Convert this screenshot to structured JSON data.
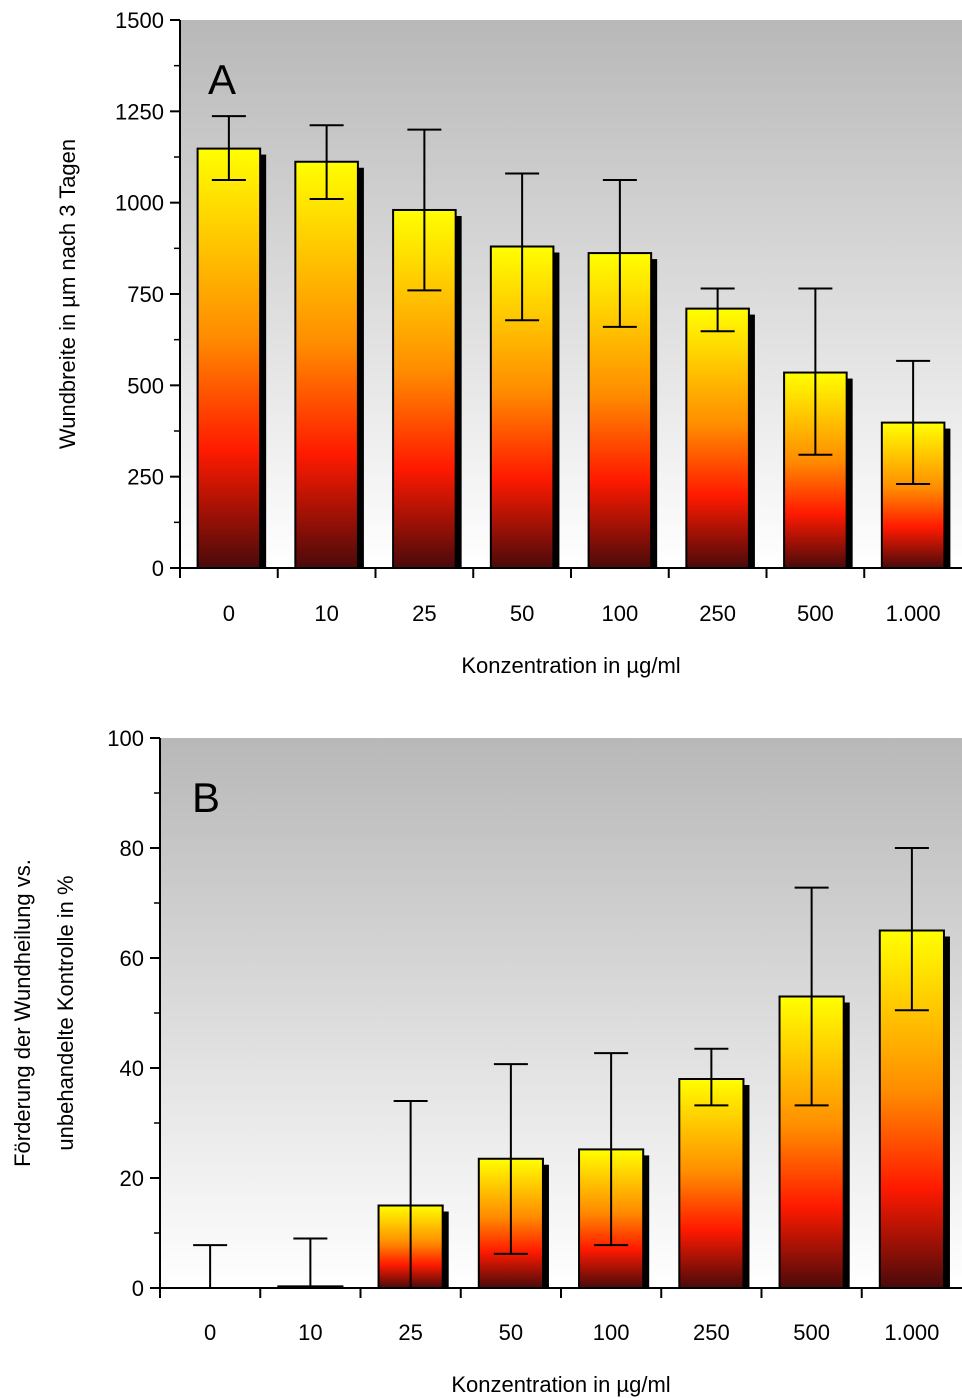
{
  "chart_data": [
    {
      "type": "bar",
      "panel_label": "A",
      "categories": [
        "0",
        "10",
        "25",
        "50",
        "100",
        "250",
        "500",
        "1.000"
      ],
      "values": [
        1148,
        1112,
        980,
        880,
        862,
        710,
        535,
        398
      ],
      "error_upper": [
        1237,
        1212,
        1200,
        1080,
        1062,
        765,
        765,
        567
      ],
      "error_lower": [
        1062,
        1010,
        760,
        678,
        660,
        648,
        310,
        230
      ],
      "xlabel": "Konzentration in µg/ml",
      "ylabel": "Wundbreite in µm nach 3 Tagen",
      "ylim": [
        0,
        1500
      ],
      "yticks": [
        0,
        250,
        500,
        750,
        1000,
        1250,
        1500
      ],
      "grid": false,
      "legend": "none"
    },
    {
      "type": "bar",
      "panel_label": "B",
      "categories": [
        "0",
        "10",
        "25",
        "50",
        "100",
        "250",
        "500",
        "1.000"
      ],
      "values": [
        0,
        0.3,
        15,
        23.5,
        25.2,
        38,
        53,
        65
      ],
      "error_upper": [
        7.8,
        9,
        34,
        40.7,
        42.7,
        43.5,
        72.8,
        80
      ],
      "error_lower": [
        0,
        0,
        0,
        6.2,
        7.8,
        33.2,
        33.2,
        50.5
      ],
      "xlabel": "Konzentration in µg/ml",
      "ylabel_lines": [
        "Förderung der Wundheilung vs.",
        "unbehandelte Kontrolle in %"
      ],
      "ylim": [
        0,
        100
      ],
      "yticks": [
        0,
        20,
        40,
        60,
        80,
        100
      ],
      "grid": false,
      "legend": "none"
    }
  ],
  "colors": {
    "bar_top": "#ffff00",
    "bar_mid_orange": "#ff8c00",
    "bar_mid_red": "#ff1a00",
    "bar_bottom": "#4a0a0a",
    "bar_shadow": "#000000",
    "background_top": "#b8b8b8",
    "background_bottom": "#ffffff"
  }
}
